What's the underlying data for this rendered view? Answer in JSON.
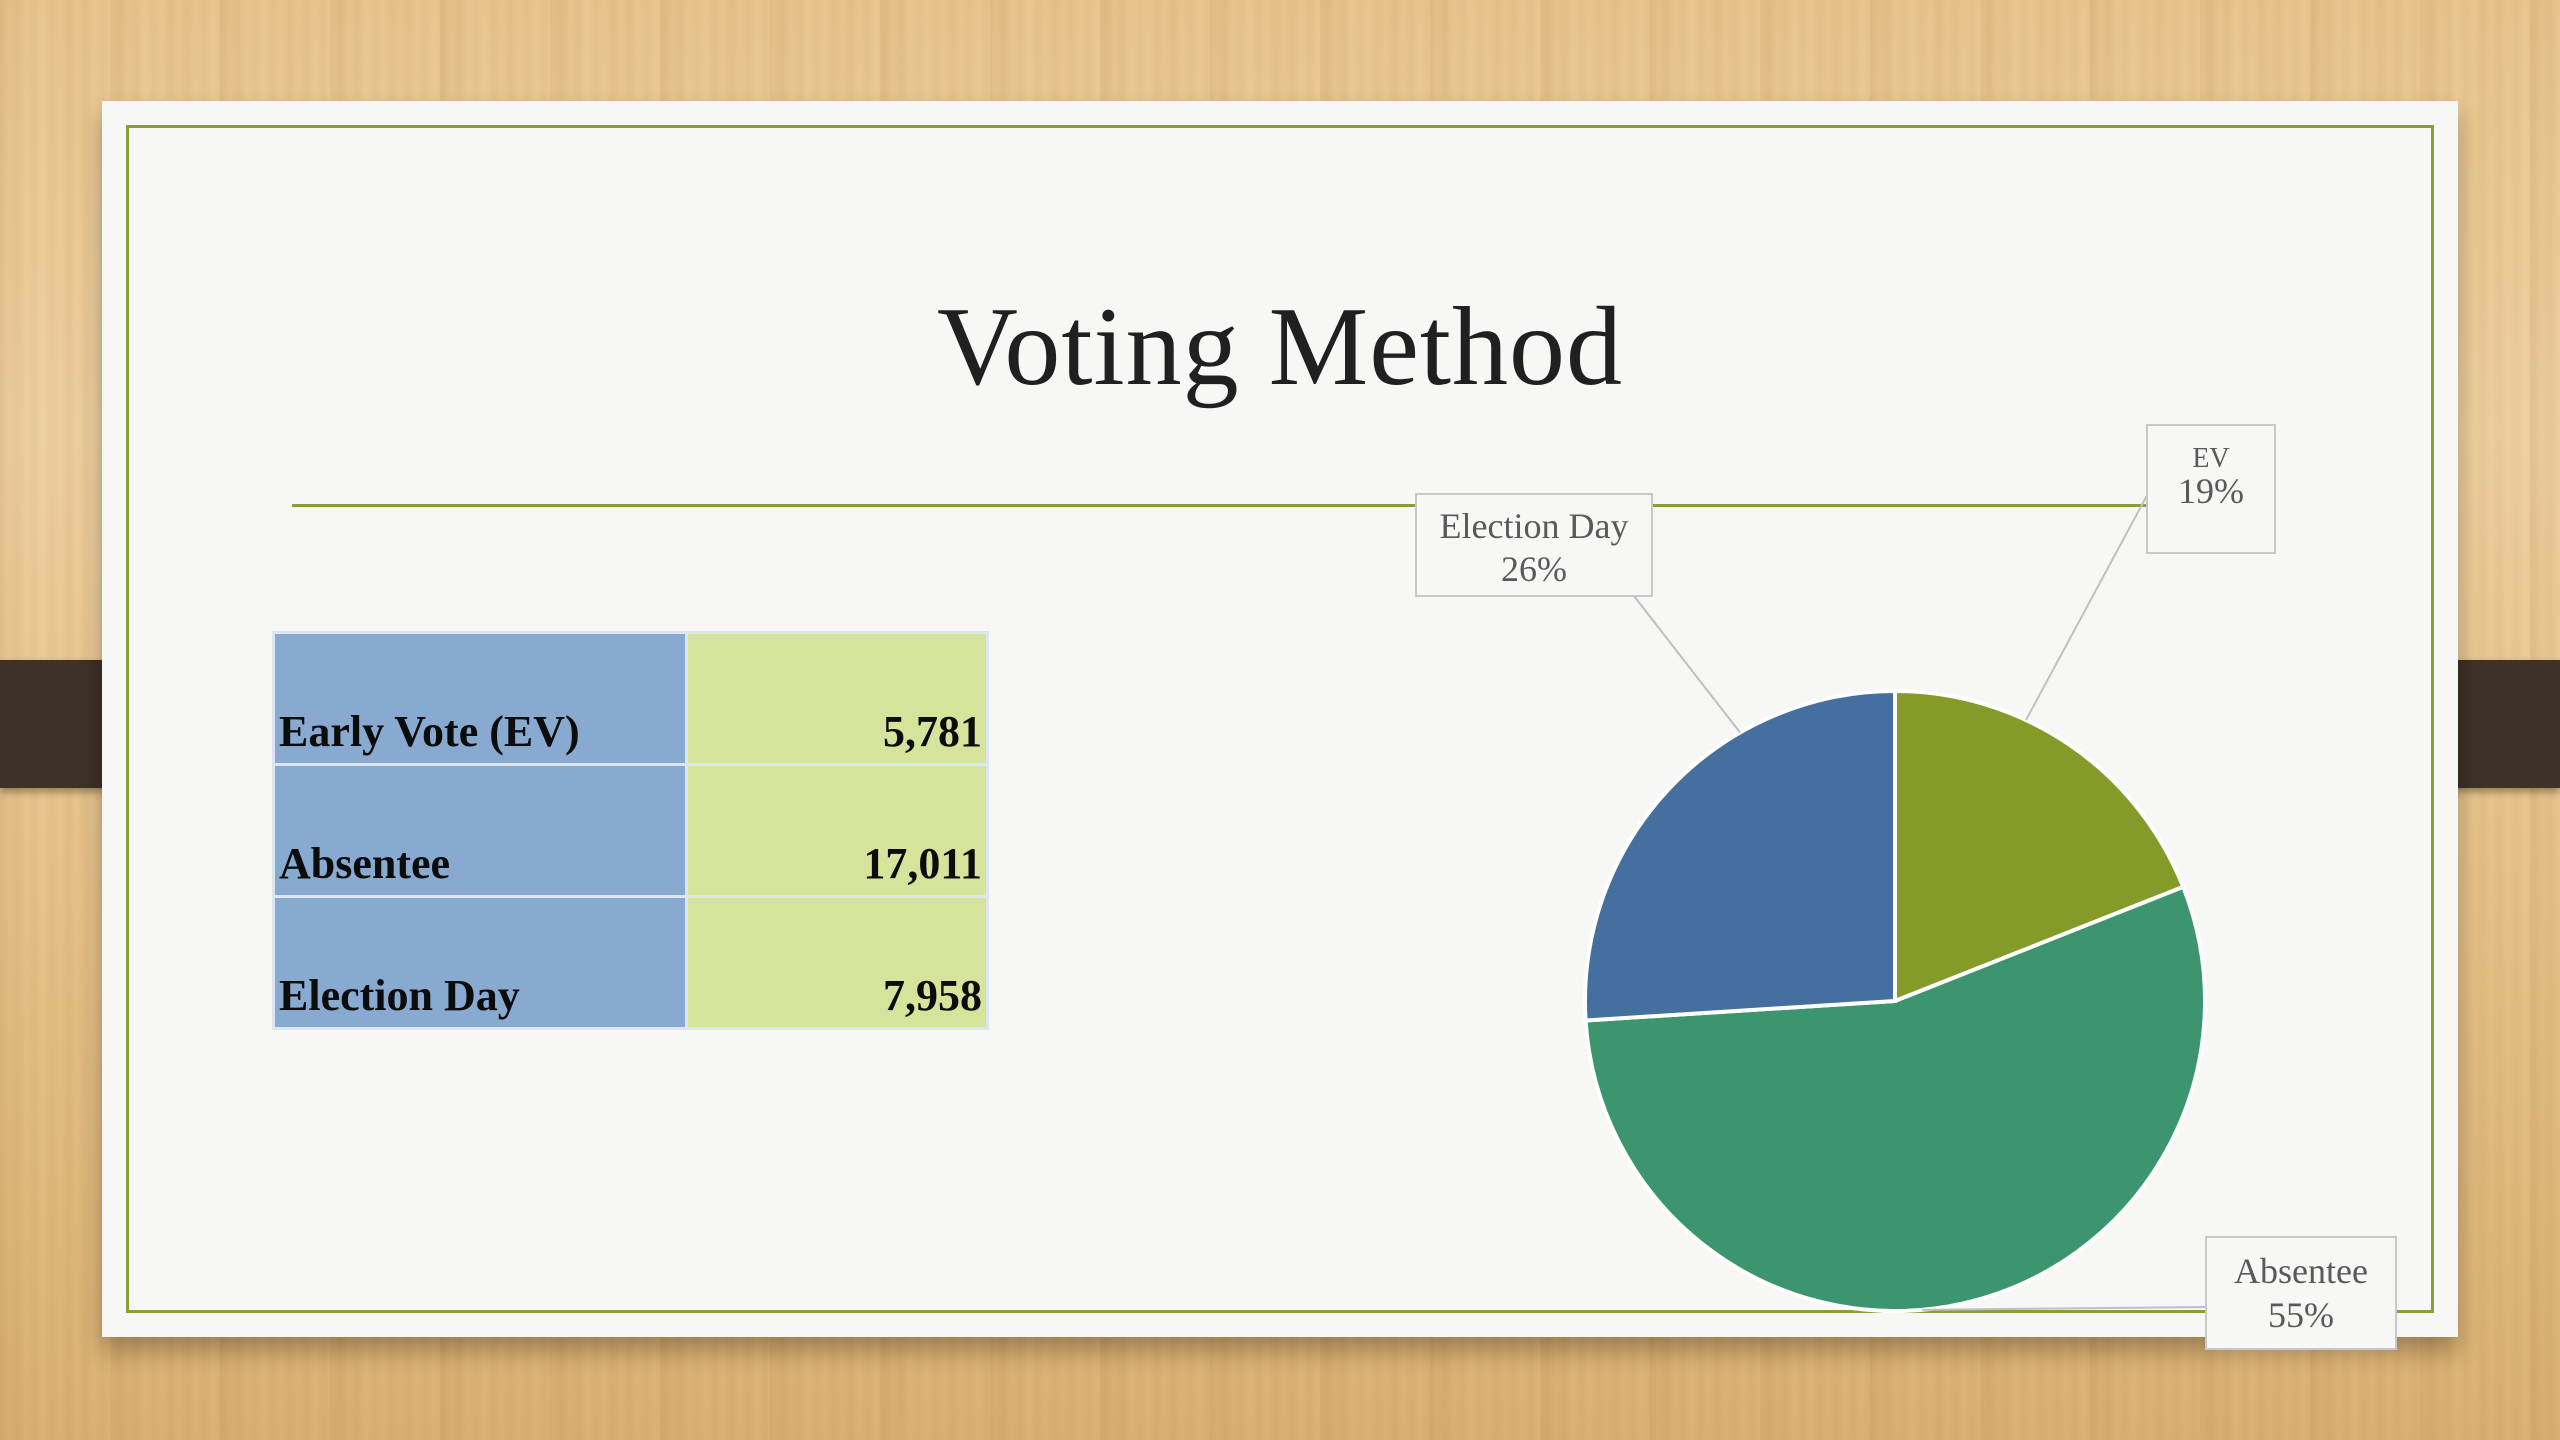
{
  "slide": {
    "title": "Voting Method"
  },
  "table": {
    "rows": [
      {
        "label": "Early Vote  (EV)",
        "value": "5,781"
      },
      {
        "label": "Absentee",
        "value": "17,011"
      },
      {
        "label": "Election Day",
        "value": "7,958"
      }
    ]
  },
  "chart_data": {
    "type": "pie",
    "title": "",
    "start_angle_deg": 0,
    "direction": "clockwise",
    "slices": [
      {
        "label": "EV",
        "value": 19,
        "display": "19%",
        "color": "#849b2a"
      },
      {
        "label": "Absentee",
        "value": 55,
        "display": "55%",
        "color": "#3d9570"
      },
      {
        "label": "Election Day",
        "value": 26,
        "display": "26%",
        "color": "#456f9f"
      }
    ]
  }
}
